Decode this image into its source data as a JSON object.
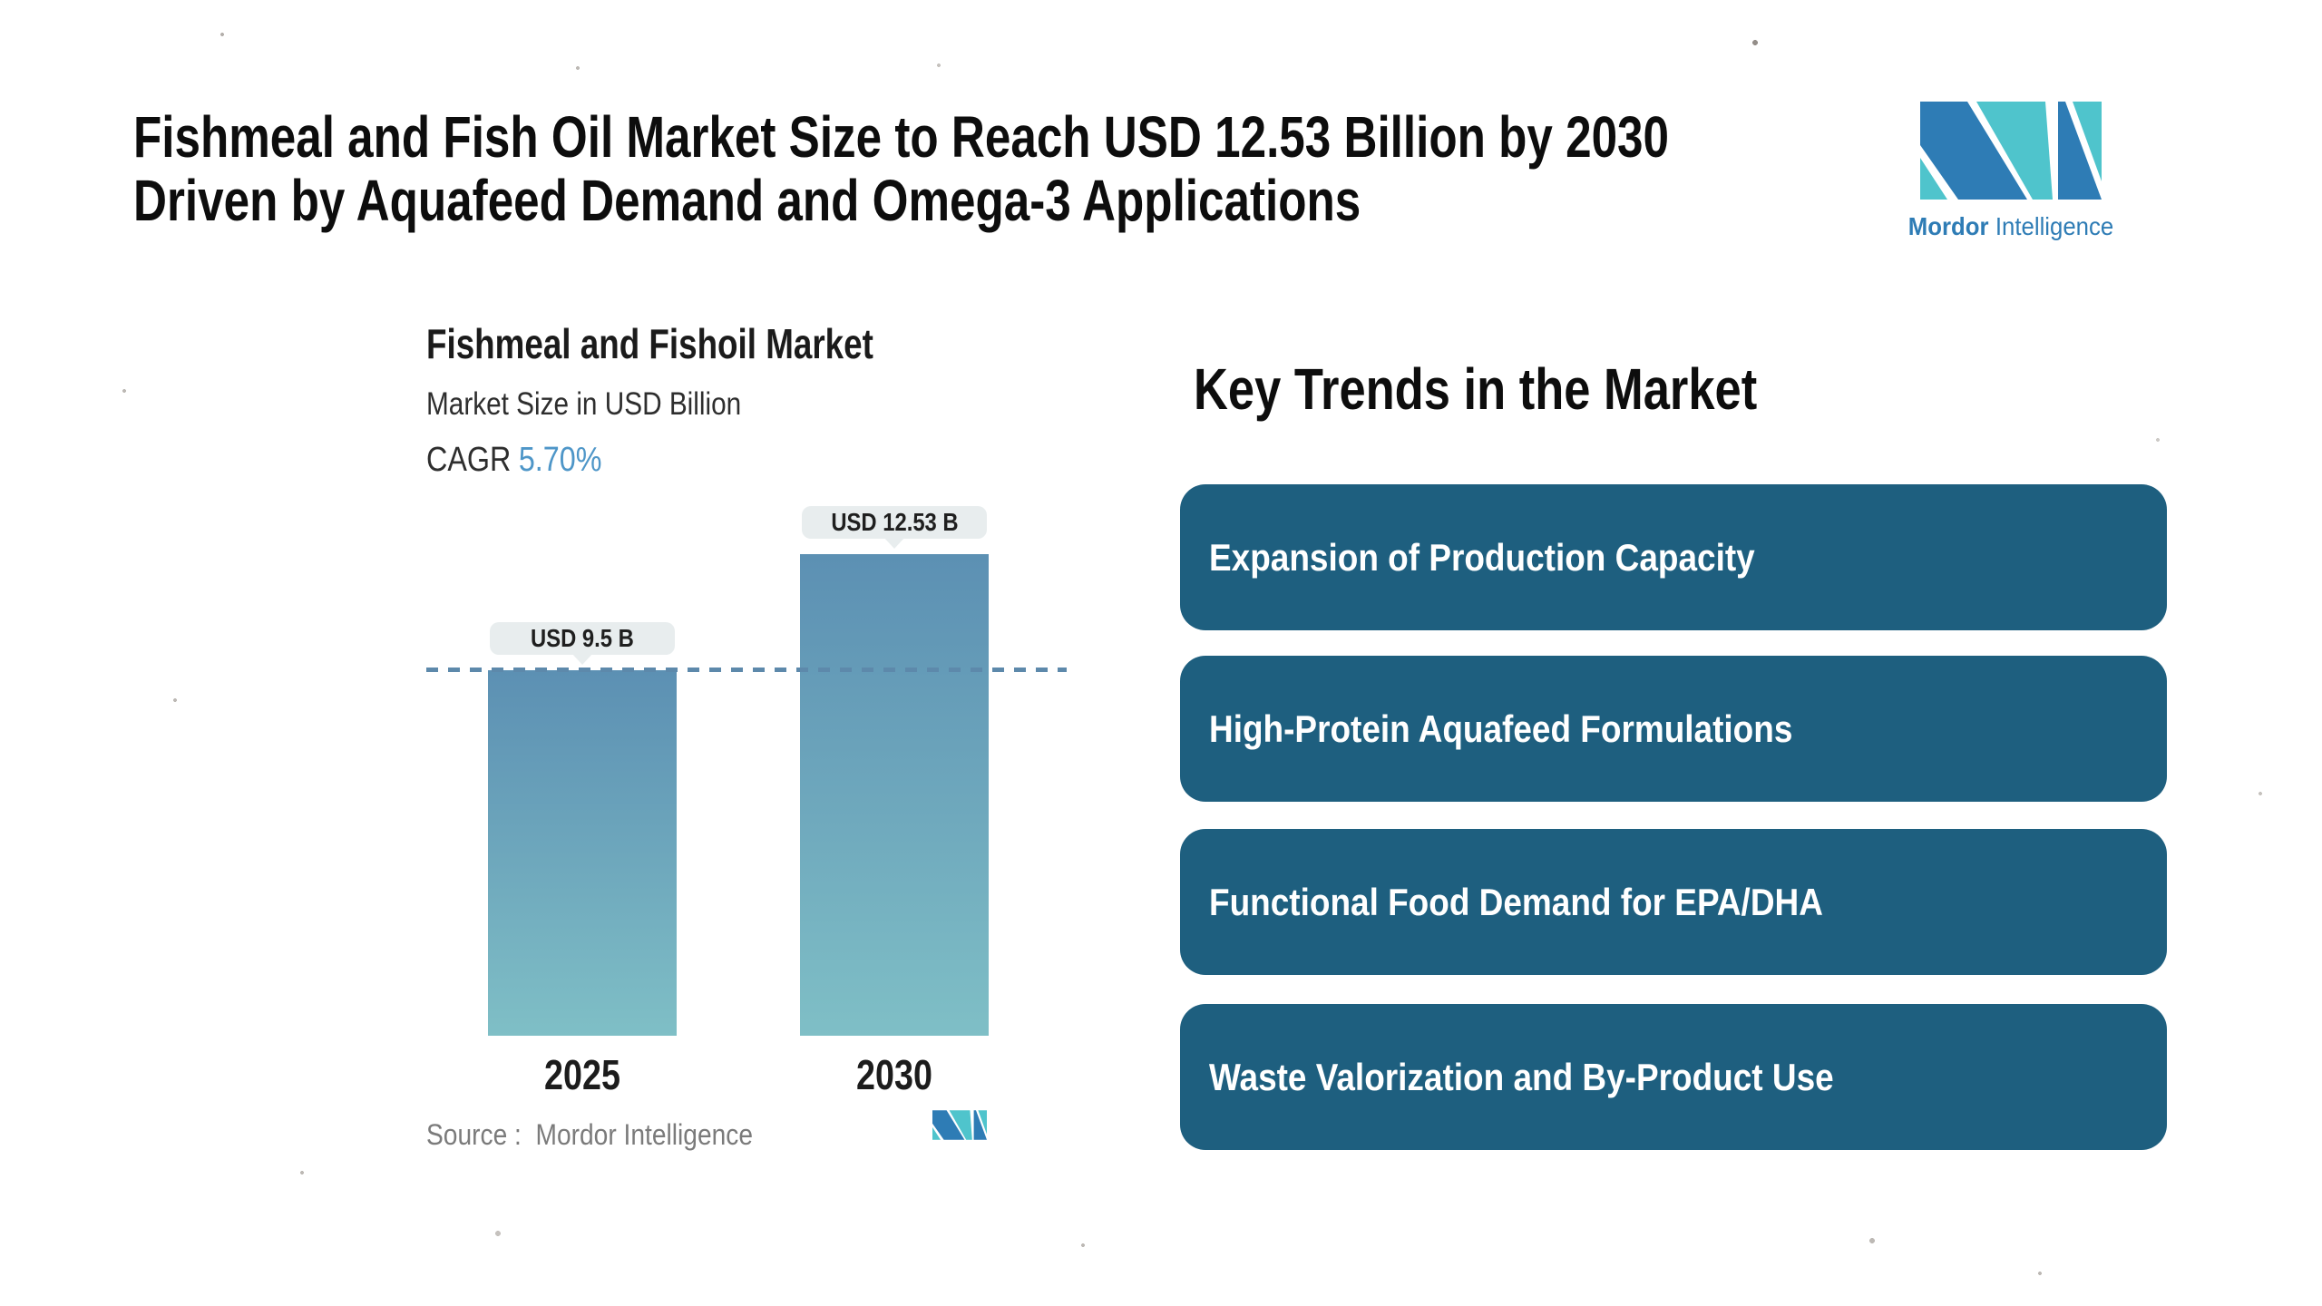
{
  "header": {
    "title_line1": "Fishmeal and Fish Oil Market Size to Reach USD 12.53 Billion by 2030",
    "title_line2": "Driven by Aquafeed Demand and Omega-3 Applications"
  },
  "brand": {
    "name_bold": "Mordor",
    "name_light": "Intelligence",
    "blue": "#2E7CB5",
    "teal": "#4FC4CC"
  },
  "chart": {
    "title": "Fishmeal and Fishoil Market",
    "subtitle": "Market Size in USD Billion",
    "cagr_label": "CAGR",
    "cagr_value": "5.70%",
    "source_text": "Source :  Mordor Intelligence"
  },
  "chart_data": {
    "type": "bar",
    "title": "Fishmeal and Fishoil Market",
    "ylabel": "Market Size in USD Billion",
    "unit": "USD Billion",
    "cagr": "5.70%",
    "categories": [
      "2025",
      "2030"
    ],
    "values": [
      9.5,
      12.53
    ],
    "value_labels": [
      "USD 9.5 B",
      "USD 12.53 B"
    ],
    "reference_line": {
      "at_value": 9.5,
      "style": "dashed",
      "color": "#5D89AB"
    },
    "bar_gradient_top": "#5C90B3",
    "bar_gradient_bottom": "#7FBFC6",
    "grid": false,
    "legend": "none"
  },
  "trends": {
    "heading": "Key Trends in the Market",
    "card_color": "#1E5F7F",
    "cards": [
      {
        "label": "Expansion of Production Capacity"
      },
      {
        "label": "High-Protein Aquafeed Formulations"
      },
      {
        "label": "Functional Food Demand for EPA/DHA"
      },
      {
        "label": "Waste Valorization and By-Product Use"
      }
    ]
  }
}
